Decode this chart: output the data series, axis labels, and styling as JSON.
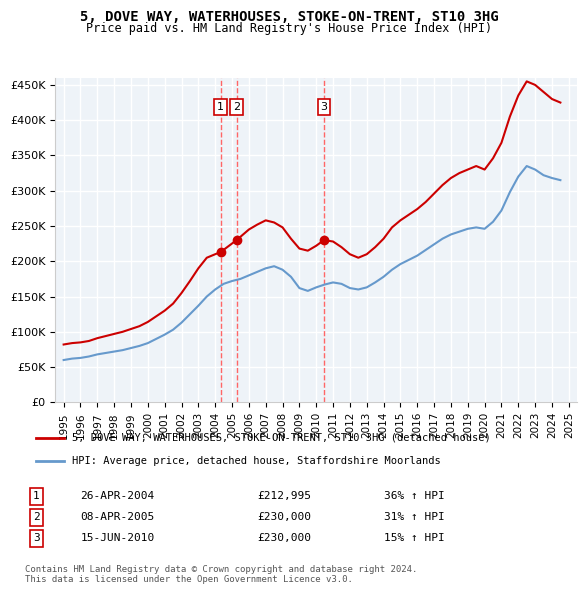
{
  "title": "5, DOVE WAY, WATERHOUSES, STOKE-ON-TRENT, ST10 3HG",
  "subtitle": "Price paid vs. HM Land Registry's House Price Index (HPI)",
  "legend_property": "5, DOVE WAY, WATERHOUSES, STOKE-ON-TRENT, ST10 3HG (detached house)",
  "legend_hpi": "HPI: Average price, detached house, Staffordshire Moorlands",
  "footer": "Contains HM Land Registry data © Crown copyright and database right 2024.\nThis data is licensed under the Open Government Licence v3.0.",
  "transactions": [
    {
      "num": 1,
      "date": "26-APR-2004",
      "price": "£212,995",
      "hpi": "36% ↑ HPI",
      "year": 2004.32
    },
    {
      "num": 2,
      "date": "08-APR-2005",
      "price": "£230,000",
      "hpi": "31% ↑ HPI",
      "year": 2005.27
    },
    {
      "num": 3,
      "date": "15-JUN-2010",
      "price": "£230,000",
      "hpi": "15% ↑ HPI",
      "year": 2010.46
    }
  ],
  "hpi_x": [
    1995,
    1995.5,
    1996,
    1996.5,
    1997,
    1997.5,
    1998,
    1998.5,
    1999,
    1999.5,
    2000,
    2000.5,
    2001,
    2001.5,
    2002,
    2002.5,
    2003,
    2003.5,
    2004,
    2004.5,
    2005,
    2005.5,
    2006,
    2006.5,
    2007,
    2007.5,
    2008,
    2008.5,
    2009,
    2009.5,
    2010,
    2010.5,
    2011,
    2011.5,
    2012,
    2012.5,
    2013,
    2013.5,
    2014,
    2014.5,
    2015,
    2015.5,
    2016,
    2016.5,
    2017,
    2017.5,
    2018,
    2018.5,
    2019,
    2019.5,
    2020,
    2020.5,
    2021,
    2021.5,
    2022,
    2022.5,
    2023,
    2023.5,
    2024,
    2024.5
  ],
  "hpi_y": [
    60000,
    62000,
    63000,
    65000,
    68000,
    70000,
    72000,
    74000,
    77000,
    80000,
    84000,
    90000,
    96000,
    103000,
    113000,
    125000,
    137000,
    150000,
    160000,
    168000,
    172000,
    175000,
    180000,
    185000,
    190000,
    193000,
    188000,
    178000,
    162000,
    158000,
    163000,
    167000,
    170000,
    168000,
    162000,
    160000,
    163000,
    170000,
    178000,
    188000,
    196000,
    202000,
    208000,
    216000,
    224000,
    232000,
    238000,
    242000,
    246000,
    248000,
    246000,
    256000,
    272000,
    298000,
    320000,
    335000,
    330000,
    322000,
    318000,
    315000
  ],
  "prop_x": [
    1995,
    1995.5,
    1996,
    1996.5,
    1997,
    1997.5,
    1998,
    1998.5,
    1999,
    1999.5,
    2000,
    2000.5,
    2001,
    2001.5,
    2002,
    2002.5,
    2003,
    2003.5,
    2004.0,
    2004.32,
    2005.27,
    2006,
    2006.5,
    2007,
    2007.5,
    2008,
    2008.5,
    2009,
    2009.5,
    2010,
    2010.46,
    2011,
    2011.5,
    2012,
    2012.5,
    2013,
    2013.5,
    2014,
    2014.5,
    2015,
    2015.5,
    2016,
    2016.5,
    2017,
    2017.5,
    2018,
    2018.5,
    2019,
    2019.5,
    2020,
    2020.5,
    2021,
    2021.5,
    2022,
    2022.5,
    2023,
    2023.5,
    2024,
    2024.5
  ],
  "prop_y": [
    82000,
    84000,
    85000,
    87000,
    91000,
    94000,
    97000,
    100000,
    104000,
    108000,
    114000,
    122000,
    130000,
    140000,
    155000,
    172000,
    190000,
    205000,
    210000,
    212995,
    230000,
    245000,
    252000,
    258000,
    255000,
    248000,
    232000,
    218000,
    215000,
    222000,
    230000,
    228000,
    220000,
    210000,
    205000,
    210000,
    220000,
    232000,
    248000,
    258000,
    266000,
    274000,
    284000,
    296000,
    308000,
    318000,
    325000,
    330000,
    335000,
    330000,
    346000,
    368000,
    405000,
    435000,
    455000,
    450000,
    440000,
    430000,
    425000
  ],
  "sale_prices": [
    212995,
    230000,
    230000
  ],
  "sale_years": [
    2004.32,
    2005.27,
    2010.46
  ],
  "ylim": [
    0,
    460000
  ],
  "xlim": [
    1994.5,
    2025.5
  ],
  "yticks": [
    0,
    50000,
    100000,
    150000,
    200000,
    250000,
    300000,
    350000,
    400000,
    450000
  ],
  "xticks": [
    1995,
    1996,
    1997,
    1998,
    1999,
    2000,
    2001,
    2002,
    2003,
    2004,
    2005,
    2006,
    2007,
    2008,
    2009,
    2010,
    2011,
    2012,
    2013,
    2014,
    2015,
    2016,
    2017,
    2018,
    2019,
    2020,
    2021,
    2022,
    2023,
    2024,
    2025
  ],
  "prop_color": "#cc0000",
  "hpi_color": "#6699cc",
  "background_plot": "#eef3f8",
  "grid_color": "#ffffff",
  "marker_box_color": "#cc0000",
  "vline_color": "#ff4444"
}
